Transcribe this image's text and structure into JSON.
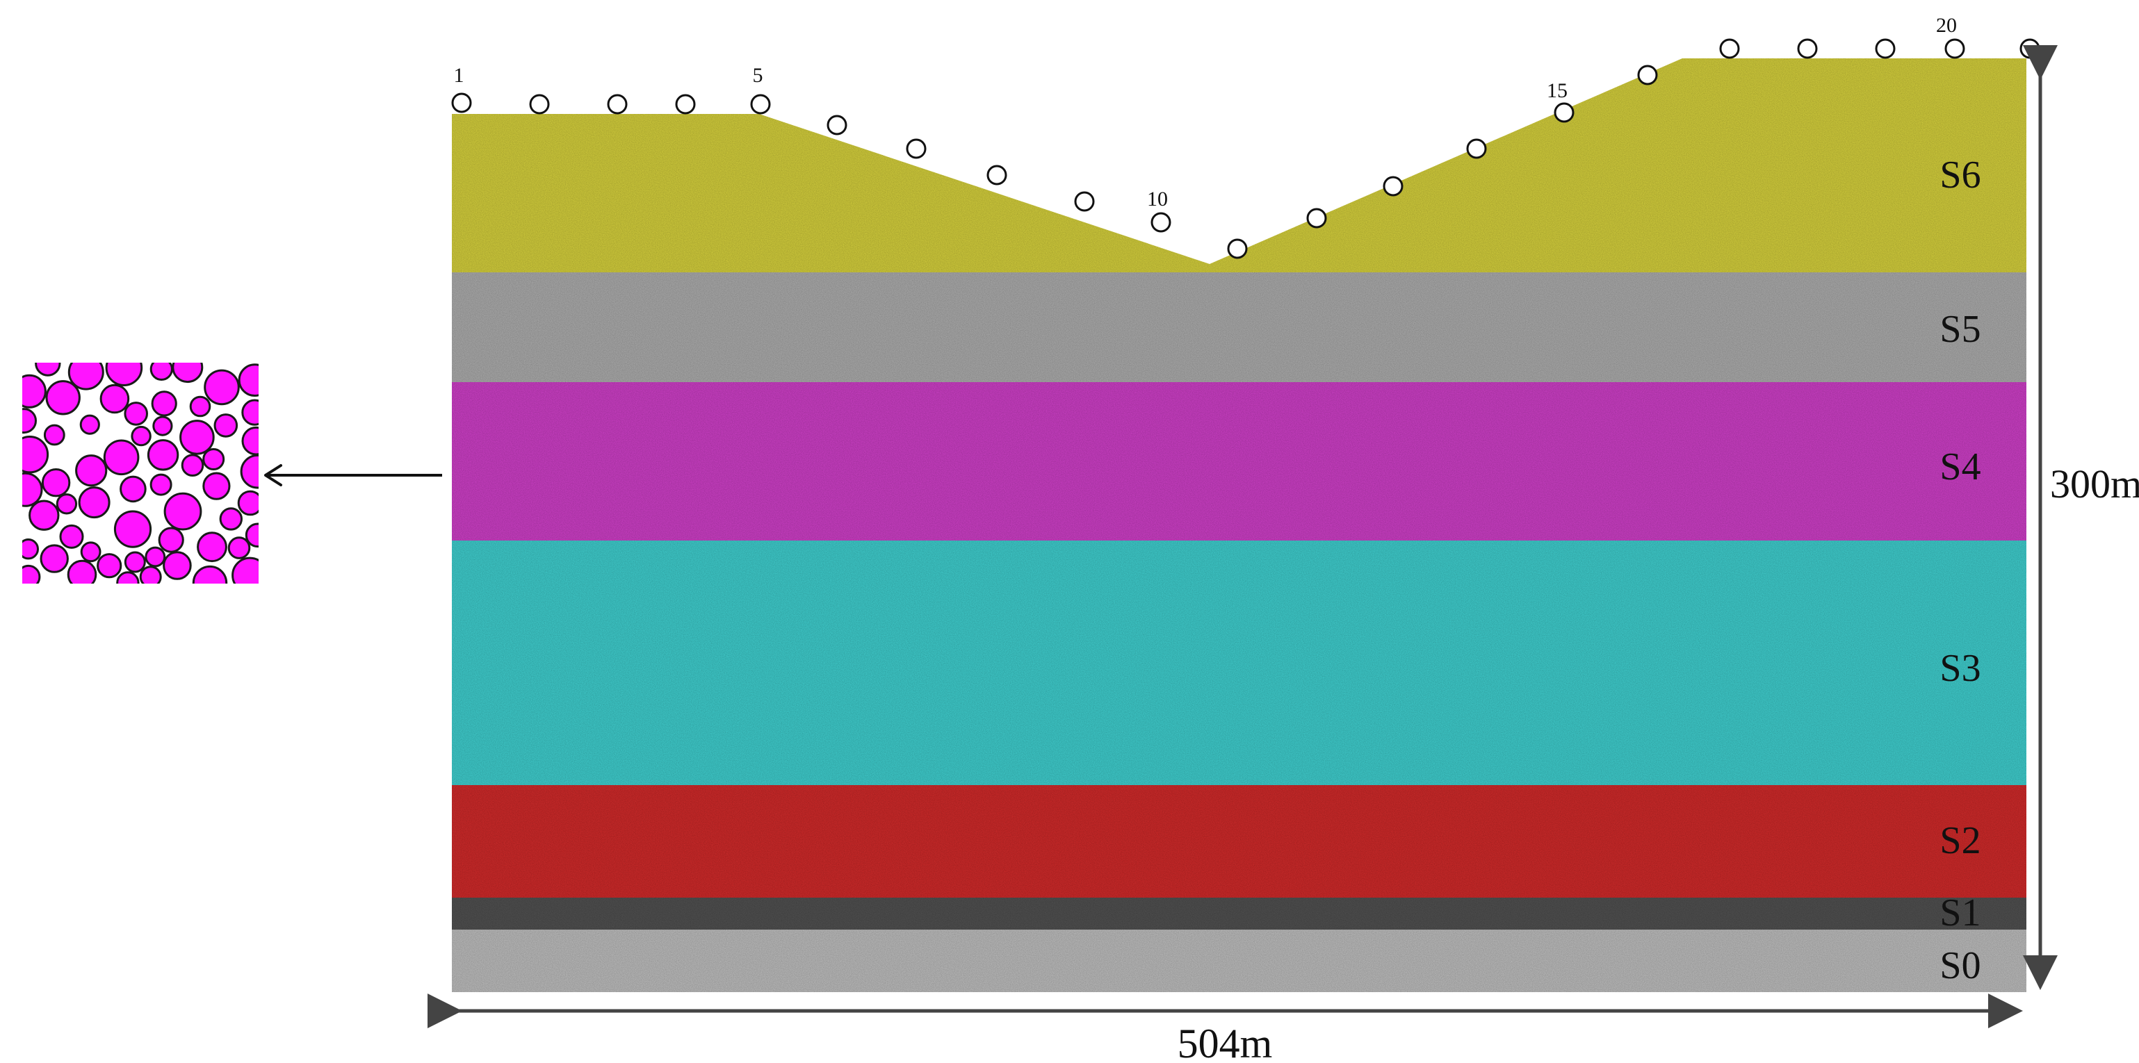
{
  "diagram": {
    "layers": [
      {
        "id": "S6",
        "label": "S6",
        "color": "#c9c43a"
      },
      {
        "id": "S5",
        "label": "S5",
        "color": "#a3a3a3"
      },
      {
        "id": "S4",
        "label": "S4",
        "color": "#c23cbc"
      },
      {
        "id": "S3",
        "label": "S3",
        "color": "#3ec3c3"
      },
      {
        "id": "S2",
        "label": "S2",
        "color": "#c42a2a"
      },
      {
        "id": "S1",
        "label": "S1",
        "color": "#4d4d4d"
      },
      {
        "id": "S0",
        "label": "S0",
        "color": "#b3b3b3"
      }
    ],
    "station_labels": [
      "1",
      "5",
      "10",
      "15",
      "20"
    ],
    "station_count": 21,
    "width_label": "504m",
    "height_label": "300m",
    "inset": {
      "particle_color": "#ff14ff",
      "outline_color": "#1a1a1a"
    }
  }
}
